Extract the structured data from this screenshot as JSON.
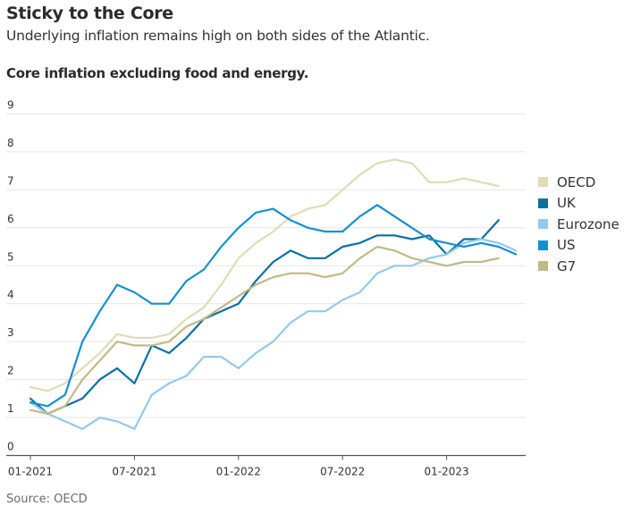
{
  "header": {
    "title": "Sticky to the Core",
    "subtitle": "Underlying inflation remains high on both sides of the Atlantic."
  },
  "footer": {
    "source": "Source: OECD"
  },
  "chart_data": {
    "type": "line",
    "title": "Core inflation excluding food and energy.",
    "xlabel": "",
    "ylabel": "",
    "ylim": [
      0,
      9
    ],
    "yticks": [
      "0",
      "1",
      "2",
      "3",
      "4",
      "5",
      "6",
      "7",
      "8",
      "9"
    ],
    "grid": true,
    "legend_position": "right",
    "x": [
      "01-2021",
      "02-2021",
      "03-2021",
      "04-2021",
      "05-2021",
      "06-2021",
      "07-2021",
      "08-2021",
      "09-2021",
      "10-2021",
      "11-2021",
      "12-2021",
      "01-2022",
      "02-2022",
      "03-2022",
      "04-2022",
      "05-2022",
      "06-2022",
      "07-2022",
      "08-2022",
      "09-2022",
      "10-2022",
      "11-2022",
      "12-2022",
      "01-2023",
      "02-2023",
      "03-2023",
      "04-2023",
      "05-2023"
    ],
    "xticks": [
      {
        "label": "01-2021",
        "index": 0
      },
      {
        "label": "07-2021",
        "index": 6
      },
      {
        "label": "01-2022",
        "index": 12
      },
      {
        "label": "07-2022",
        "index": 18
      },
      {
        "label": "01-2023",
        "index": 24
      }
    ],
    "series": [
      {
        "name": "OECD",
        "color": "#e1dbb8",
        "values": [
          1.8,
          1.7,
          1.9,
          2.3,
          2.7,
          3.2,
          3.1,
          3.1,
          3.2,
          3.6,
          3.9,
          4.5,
          5.2,
          5.6,
          5.9,
          6.3,
          6.5,
          6.6,
          7.0,
          7.4,
          7.7,
          7.8,
          7.7,
          7.2,
          7.2,
          7.3,
          7.2,
          7.1,
          null
        ]
      },
      {
        "name": "UK",
        "color": "#0a6fa3",
        "values": [
          1.5,
          1.1,
          1.3,
          1.5,
          2.0,
          2.3,
          1.9,
          2.9,
          2.7,
          3.1,
          3.6,
          3.8,
          4.0,
          4.6,
          5.1,
          5.4,
          5.2,
          5.2,
          5.5,
          5.6,
          5.8,
          5.8,
          5.7,
          5.8,
          5.3,
          5.7,
          5.7,
          6.2,
          null
        ]
      },
      {
        "name": "Eurozone",
        "color": "#95c9ec",
        "values": [
          1.4,
          1.1,
          0.9,
          0.7,
          1.0,
          0.9,
          0.7,
          1.6,
          1.9,
          2.1,
          2.6,
          2.6,
          2.3,
          2.7,
          3.0,
          3.5,
          3.8,
          3.8,
          4.1,
          4.3,
          4.8,
          5.0,
          5.0,
          5.2,
          5.3,
          5.6,
          5.7,
          5.6,
          5.4
        ]
      },
      {
        "name": "US",
        "color": "#1590d2",
        "values": [
          1.4,
          1.3,
          1.6,
          3.0,
          3.8,
          4.5,
          4.3,
          4.0,
          4.0,
          4.6,
          4.9,
          5.5,
          6.0,
          6.4,
          6.5,
          6.2,
          6.0,
          5.9,
          5.9,
          6.3,
          6.6,
          6.3,
          6.0,
          5.7,
          5.6,
          5.5,
          5.6,
          5.5,
          5.3
        ]
      },
      {
        "name": "G7",
        "color": "#c1ba87",
        "values": [
          1.2,
          1.1,
          1.3,
          2.0,
          2.5,
          3.0,
          2.9,
          2.9,
          3.0,
          3.4,
          3.6,
          3.9,
          4.2,
          4.5,
          4.7,
          4.8,
          4.8,
          4.7,
          4.8,
          5.2,
          5.5,
          5.4,
          5.2,
          5.1,
          5.0,
          5.1,
          5.1,
          5.2,
          null
        ]
      }
    ]
  }
}
